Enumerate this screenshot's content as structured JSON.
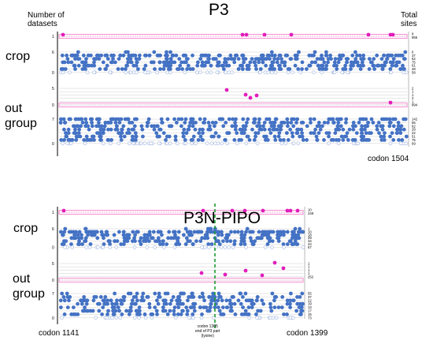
{
  "header": {
    "left_label": "Number of\ndatasets",
    "right_label": "Total\nsites"
  },
  "panels": [
    {
      "id": "p3",
      "title": "P3",
      "crop_label": "crop",
      "out_label": "out\ngroup",
      "end_codon": "codon 1504",
      "colors": {
        "selected": "#e21dbb",
        "neutral": "#4472c4",
        "band": "#f48fd0"
      },
      "crop_axis": [
        "6",
        "0"
      ],
      "sel_axis": [
        "1"
      ],
      "out_sel_axis": [
        "5",
        "0"
      ],
      "out_axis": [
        "7",
        "0"
      ],
      "right_counts_sel": [
        "9",
        "855"
      ],
      "right_counts_crop": [
        "6",
        "37",
        "52",
        "75",
        "61",
        "48",
        "58"
      ],
      "right_counts_outsel": [
        "2",
        "1",
        "1",
        "2",
        "1",
        "894"
      ],
      "right_counts_out": [
        "142",
        "55",
        "62",
        "29",
        "22",
        "51",
        "75",
        "69"
      ]
    },
    {
      "id": "p3n-pipo",
      "title": "P3N-PIPO",
      "crop_label": "crop",
      "out_label": "out\ngroup",
      "start_codon": "codon 1141",
      "end_codon": "codon 1399",
      "marker_annotation": "codon 1305\nend of P3 part\n(lysine)",
      "colors": {
        "selected": "#e21dbb",
        "neutral": "#4472c4",
        "band": "#f48fd0",
        "marker": "#1a9c2e"
      },
      "crop_axis": [
        "6",
        "0"
      ],
      "sel_axis": [
        "1"
      ],
      "out_sel_axis": [
        "5",
        "0"
      ],
      "out_axis": [
        "7",
        "0"
      ],
      "right_counts_sel": [
        "10",
        "249"
      ],
      "right_counts_crop": [
        "1",
        "10",
        "18",
        "29",
        "34",
        "44",
        "57"
      ],
      "right_counts_outsel": [
        "1",
        "1",
        "1",
        "1",
        "252"
      ],
      "right_counts_out": [
        "55",
        "37",
        "22",
        "19",
        "13",
        "17",
        "15",
        "73"
      ]
    }
  ]
}
